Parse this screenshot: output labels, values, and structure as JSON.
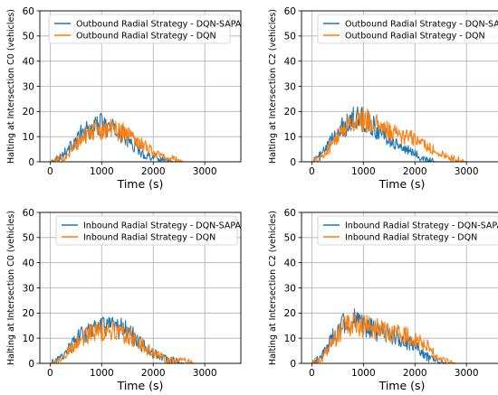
{
  "chart_data": [
    {
      "type": "line",
      "xlabel": "Time (s)",
      "ylabel": "Halting at Intersection C0 (vehicles)",
      "xlim": [
        -200,
        3700
      ],
      "ylim": [
        0,
        60
      ],
      "xticks": [
        "0",
        "1000",
        "2000",
        "3000"
      ],
      "yticks": [
        "0",
        "10",
        "20",
        "30",
        "40",
        "50",
        "60"
      ],
      "grid": true,
      "legend_position": "top-left",
      "series": [
        {
          "name": "Outbound Radial Strategy - DQN-SAPA",
          "color": "#1f77b4",
          "x": [
            0,
            200,
            400,
            600,
            800,
            1000,
            1200,
            1400,
            1600,
            1800,
            2000,
            2200,
            2400,
            2600,
            2800,
            3000
          ],
          "y": [
            0,
            2,
            6,
            11,
            13,
            15,
            13,
            11,
            7,
            3,
            2,
            1,
            0,
            0,
            0,
            0
          ]
        },
        {
          "name": "Outbound Radial Strategy - DQN",
          "color": "#ff7f0e",
          "x": [
            0,
            200,
            400,
            600,
            800,
            1000,
            1200,
            1400,
            1600,
            1800,
            2000,
            2200,
            2400,
            2600,
            2800,
            3000
          ],
          "y": [
            0,
            1,
            4,
            9,
            12,
            13,
            13,
            12,
            10,
            7,
            4,
            2,
            1,
            0,
            0,
            0
          ]
        }
      ]
    },
    {
      "type": "line",
      "xlabel": "Time (s)",
      "ylabel": "Halting at Intersection C2 (vehicles)",
      "xlim": [
        -200,
        3700
      ],
      "ylim": [
        0,
        60
      ],
      "xticks": [
        "0",
        "1000",
        "2000",
        "3000"
      ],
      "yticks": [
        "0",
        "10",
        "20",
        "30",
        "40",
        "50",
        "60"
      ],
      "grid": true,
      "legend_position": "top-right",
      "series": [
        {
          "name": "Outbound Radial Strategy - DQN-SAPA",
          "color": "#1f77b4",
          "x": [
            0,
            200,
            400,
            600,
            800,
            1000,
            1200,
            1400,
            1600,
            1800,
            2000,
            2200,
            2400,
            2600,
            2800,
            3000
          ],
          "y": [
            0,
            3,
            9,
            14,
            17,
            17,
            14,
            11,
            8,
            5,
            3,
            1,
            0,
            0,
            0,
            0
          ]
        },
        {
          "name": "Outbound Radial Strategy - DQN",
          "color": "#ff7f0e",
          "x": [
            0,
            200,
            400,
            600,
            800,
            1000,
            1200,
            1400,
            1600,
            1800,
            2000,
            2200,
            2400,
            2600,
            2800,
            3000
          ],
          "y": [
            0,
            2,
            7,
            13,
            16,
            17,
            15,
            13,
            11,
            10,
            9,
            7,
            4,
            2,
            1,
            0
          ]
        }
      ]
    },
    {
      "type": "line",
      "xlabel": "Time (s)",
      "ylabel": "Halting at Intersection C0 (vehicles)",
      "xlim": [
        -200,
        3700
      ],
      "ylim": [
        0,
        60
      ],
      "xticks": [
        "0",
        "1000",
        "2000",
        "3000"
      ],
      "yticks": [
        "0",
        "10",
        "20",
        "30",
        "40",
        "50",
        "60"
      ],
      "grid": true,
      "legend_position": "top-right",
      "series": [
        {
          "name": "Inbound Radial Strategy - DQN-SAPA",
          "color": "#1f77b4",
          "x": [
            0,
            200,
            400,
            600,
            800,
            1000,
            1200,
            1400,
            1600,
            1800,
            2000,
            2200,
            2400,
            2600,
            2800,
            3000,
            3200,
            3400
          ],
          "y": [
            0,
            2,
            7,
            11,
            13,
            14,
            14,
            14,
            11,
            7,
            4,
            2,
            1,
            0,
            0,
            0,
            0,
            0
          ]
        },
        {
          "name": "Inbound Radial Strategy - DQN",
          "color": "#ff7f0e",
          "x": [
            0,
            200,
            400,
            600,
            800,
            1000,
            1200,
            1400,
            1600,
            1800,
            2000,
            2200,
            2400,
            2600,
            2800,
            3000,
            3200,
            3400
          ],
          "y": [
            0,
            1,
            6,
            10,
            12,
            13,
            13,
            12,
            10,
            7,
            4,
            2,
            1,
            1,
            0,
            0,
            0,
            0
          ]
        }
      ]
    },
    {
      "type": "line",
      "xlabel": "Time (s)",
      "ylabel": "Halting at Intersection C2 (vehicles)",
      "xlim": [
        -200,
        3700
      ],
      "ylim": [
        0,
        60
      ],
      "xticks": [
        "0",
        "1000",
        "2000",
        "3000"
      ],
      "yticks": [
        "0",
        "10",
        "20",
        "30",
        "40",
        "50",
        "60"
      ],
      "grid": true,
      "legend_position": "top-right",
      "series": [
        {
          "name": "Inbound Radial Strategy - DQN-SAPA",
          "color": "#1f77b4",
          "x": [
            0,
            200,
            400,
            600,
            800,
            1000,
            1200,
            1400,
            1600,
            1800,
            2000,
            2200,
            2400,
            2600,
            2800,
            3000
          ],
          "y": [
            0,
            3,
            10,
            16,
            17,
            15,
            13,
            12,
            11,
            9,
            7,
            3,
            1,
            0,
            0,
            0
          ]
        },
        {
          "name": "Inbound Radial Strategy - DQN",
          "color": "#ff7f0e",
          "x": [
            0,
            200,
            400,
            600,
            800,
            1000,
            1200,
            1400,
            1600,
            1800,
            2000,
            2200,
            2400,
            2600,
            2800,
            3000
          ],
          "y": [
            0,
            2,
            8,
            14,
            16,
            15,
            14,
            13,
            12,
            11,
            10,
            8,
            3,
            1,
            0,
            0
          ]
        }
      ]
    }
  ]
}
